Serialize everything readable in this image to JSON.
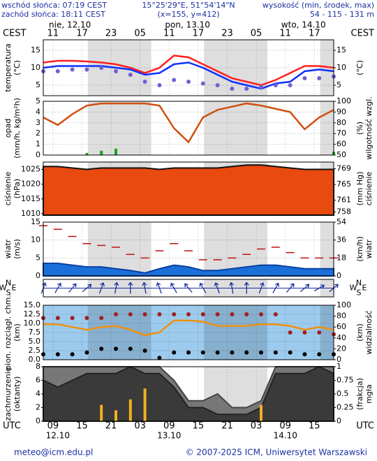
{
  "header": {
    "sunrise": "wschód słońca: 07:19 CEST",
    "sunset": "zachód słońca: 18:11 CEST",
    "coords": "15°25'29\"E, 51°54'14\"N",
    "grid": "(x=155, y=412)",
    "elevation_title": "wysokość (min, środek, max)",
    "elevation": "54 - 115 - 131 m"
  },
  "time_axis": {
    "top_unit": "CEST",
    "cest_ticks": [
      "11",
      "17",
      "23",
      "05",
      "11",
      "17",
      "23",
      "05",
      "11",
      "17"
    ],
    "top_dates": [
      "nie, 12.10",
      "pon, 13.10",
      "wto, 14.10"
    ],
    "bottom_unit": "UTC",
    "utc_ticks": [
      "09",
      "15",
      "21",
      "03",
      "09",
      "15",
      "21",
      "03",
      "09",
      "15"
    ],
    "bottom_dates": [
      "12.10",
      "13.10",
      "14.10"
    ]
  },
  "chart_data": [
    {
      "type": "line",
      "ylabel": [
        "temperatura",
        "(°C)"
      ],
      "y2label": [
        "(°C)"
      ],
      "ylim": [
        2,
        18
      ],
      "yticks": [
        5,
        10,
        15
      ],
      "y2lim": [
        2,
        18
      ],
      "y2ticks": [
        5,
        10,
        15
      ],
      "grid": true,
      "series": [
        {
          "style": "line",
          "color": "#ff2020",
          "values": [
            11.5,
            12,
            12,
            11.8,
            11.5,
            11,
            10,
            8.5,
            10,
            13.5,
            13,
            11,
            9,
            7,
            6,
            5,
            6.5,
            8.5,
            10.5,
            10.5,
            10
          ]
        },
        {
          "style": "line",
          "color": "#1030ff",
          "values": [
            10,
            10.5,
            10.5,
            10.5,
            10.5,
            10,
            9.5,
            8,
            8.5,
            11,
            11.5,
            10,
            8,
            6,
            5,
            4,
            5.5,
            6,
            9,
            9.5,
            9
          ]
        },
        {
          "style": "dots",
          "color": "#7060d0",
          "values": [
            9,
            9,
            9.5,
            9.5,
            10,
            9,
            8,
            6,
            5,
            6.5,
            6,
            5.5,
            5,
            4,
            4,
            4.5,
            5,
            5,
            7,
            7,
            7.5
          ]
        }
      ]
    },
    {
      "type": "line",
      "ylabel": [
        "opad",
        "(mm/h, kg/m²h)"
      ],
      "y2label": [
        "(%)",
        "wilgotność wzgl."
      ],
      "ylim": [
        0,
        5
      ],
      "yticks": [
        0,
        1,
        2,
        3,
        4,
        5
      ],
      "y2lim": [
        50,
        100
      ],
      "y2ticks": [
        50,
        60,
        70,
        80,
        90,
        100
      ],
      "y2color": "#d05010",
      "grid": true,
      "series": [
        {
          "style": "bars",
          "color": "#20a020",
          "values": [
            0,
            0,
            0,
            0.2,
            0.4,
            0.6,
            0,
            0,
            0,
            0,
            0,
            0,
            0,
            0,
            0,
            0,
            0,
            0,
            0,
            0,
            0.3
          ]
        },
        {
          "style": "line",
          "axis": "y2",
          "color": "#d05010",
          "values": [
            85,
            78,
            88,
            96,
            98,
            98,
            98,
            98,
            96,
            75,
            62,
            85,
            92,
            95,
            98,
            96,
            93,
            90,
            74,
            85,
            92
          ]
        }
      ]
    },
    {
      "type": "line",
      "ylabel": [
        "ciśnienie",
        "(hPa)"
      ],
      "y2label": [
        "(mm Hg)",
        "ciśnienie"
      ],
      "ylim": [
        1009.5,
        1027.5
      ],
      "yticks": [
        1010,
        1015,
        1020,
        1025
      ],
      "y2lim": [
        757.2,
        770.7
      ],
      "y2ticks": [
        758,
        761,
        765,
        769
      ],
      "grid": false,
      "series": [
        {
          "style": "area",
          "color": "#111111",
          "fill": "#e84a10",
          "values": [
            1026,
            1026,
            1025.5,
            1025,
            1025.5,
            1025.5,
            1025.5,
            1025.5,
            1025,
            1025.5,
            1025.5,
            1025.5,
            1025.5,
            1026,
            1026.5,
            1026.5,
            1026,
            1025.5,
            1025,
            1025,
            1025
          ]
        }
      ]
    },
    {
      "type": "line",
      "ylabel": [
        "wiatr",
        "(m/s)"
      ],
      "y2label": [
        "(km/h)",
        "wiatr"
      ],
      "ylim": [
        0,
        15
      ],
      "yticks": [
        0,
        5,
        10,
        15
      ],
      "y2lim": [
        0,
        54
      ],
      "y2ticks": [
        0,
        18,
        36,
        54
      ],
      "grid": true,
      "series": [
        {
          "style": "area",
          "color": "#0a40a0",
          "fill": "#1a70d8",
          "values": [
            3.5,
            3.5,
            3,
            2.5,
            2.5,
            2,
            1.5,
            0.8,
            2,
            3,
            2.5,
            1.5,
            1.5,
            2,
            2.5,
            3,
            3,
            2.5,
            2,
            2,
            2
          ]
        },
        {
          "style": "dashes",
          "color": "#c01010",
          "values": [
            14,
            13,
            11,
            9,
            8.5,
            8,
            6,
            5,
            7,
            9,
            7,
            4.5,
            4.5,
            5,
            6,
            7.5,
            8,
            6.5,
            5,
            5,
            5
          ]
        }
      ]
    },
    {
      "type": "arrows",
      "compass": [
        "N",
        "W",
        "E",
        "S"
      ],
      "color": "#1a2fa0",
      "values": [
        200,
        210,
        220,
        230,
        200,
        190,
        180,
        170,
        160,
        150,
        140,
        150,
        160,
        170,
        180,
        200,
        210,
        220,
        230,
        240,
        230
      ]
    },
    {
      "type": "line",
      "ylabel": [
        "pion. rozciągł. chm.",
        "(km)"
      ],
      "y2label": [
        "(km)",
        "widzialność"
      ],
      "background": "#9ccbee",
      "ylim": [
        0,
        15
      ],
      "yticks": [
        {
          "value": 0,
          "label": "0.0"
        },
        {
          "value": 2.5,
          "label": "2.5"
        },
        {
          "value": 5,
          "label": "5.0"
        },
        {
          "value": 7.5,
          "label": "7.5"
        },
        {
          "value": 10,
          "label": "10.0"
        },
        {
          "value": 12.5,
          "label": "12.5"
        },
        {
          "value": 15,
          "label": "15.0"
        }
      ],
      "y2lim": [
        0,
        100
      ],
      "y2ticks": [
        0,
        20,
        40,
        60,
        80,
        100
      ],
      "y2color": "#e08000",
      "grid": true,
      "series": [
        {
          "style": "line",
          "axis": "y2",
          "color": "#f09010",
          "values": [
            65,
            65,
            60,
            55,
            60,
            62,
            55,
            45,
            50,
            72,
            72,
            70,
            62,
            62,
            62,
            65,
            65,
            62,
            55,
            60,
            55
          ]
        },
        {
          "style": "dots",
          "color": "#a02020",
          "values": [
            11.5,
            11.5,
            11.5,
            11.5,
            11.5,
            12.5,
            12.5,
            12.5,
            12.5,
            12.5,
            12.5,
            12.5,
            12.5,
            12.5,
            12.5,
            12.5,
            12.5,
            7.5,
            7.5,
            7.5,
            7
          ]
        },
        {
          "style": "dots",
          "color": "#000000",
          "values": [
            1.5,
            1.5,
            1.5,
            2,
            3,
            3,
            3,
            2.5,
            0.5,
            2,
            2,
            2,
            2,
            2,
            2,
            2,
            2,
            2,
            1.5,
            1.5,
            1.5
          ]
        }
      ]
    },
    {
      "type": "line",
      "ylabel": [
        "zachmurzenie",
        "(oktanty)"
      ],
      "y2label": [
        "(frakcja)",
        "mgła"
      ],
      "ylim": [
        0,
        8
      ],
      "yticks": [
        0,
        2,
        4,
        6,
        8
      ],
      "y2lim": [
        0,
        1
      ],
      "y2ticks": [
        0,
        0.25,
        0.5,
        0.75,
        1
      ],
      "y2color": "#e08000",
      "grid": false,
      "series": [
        {
          "style": "area",
          "color": "#444444",
          "fill": "#777777",
          "values": [
            8,
            8,
            8,
            8,
            8,
            8,
            8,
            8,
            8,
            6,
            3,
            3,
            4,
            2,
            2,
            3,
            8,
            8,
            8,
            8,
            8
          ]
        },
        {
          "style": "area",
          "color": "#222222",
          "fill": "#3a3a3a",
          "values": [
            6,
            5,
            6,
            7,
            7,
            7,
            8,
            7,
            7,
            5,
            2,
            2,
            1,
            1,
            1,
            2,
            7,
            7,
            7,
            8,
            7
          ]
        },
        {
          "style": "bars",
          "axis": "y2",
          "color": "#f0b020",
          "values": [
            0,
            0,
            0,
            0,
            0.3,
            0.2,
            0.4,
            0.6,
            0,
            0,
            0,
            0,
            0,
            0,
            0,
            0.3,
            0,
            0,
            0,
            0,
            0
          ]
        }
      ]
    }
  ],
  "footer": {
    "email": "meteo@icm.edu.pl",
    "copyright": "© 2007-2025 ICM, Uniwersytet Warszawski"
  }
}
